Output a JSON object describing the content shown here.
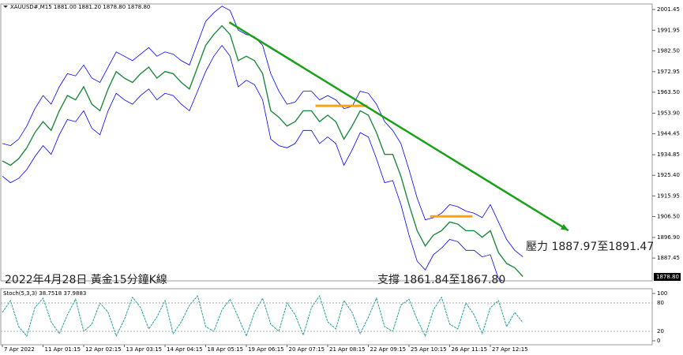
{
  "chart_data": {
    "type": "line",
    "title": "XAUUSD#,M15  1881.00 1881.20 1878.80 1878.80",
    "annotations": [
      "2022年4月28日 黃金15分鐘K線",
      "支撐 1861.84至1867.80",
      "壓力 1887.97至1891.47"
    ],
    "categories": [
      "7 Apr 2022",
      null,
      null,
      null,
      null,
      "11 Apr 01:15",
      null,
      null,
      null,
      null,
      "12 Apr 02:15",
      null,
      null,
      null,
      null,
      "13 Apr 03:15",
      null,
      null,
      null,
      null,
      "14 Apr 04:15",
      null,
      null,
      null,
      null,
      "18 Apr 05:15",
      null,
      null,
      null,
      null,
      "19 Apr 06:15",
      null,
      null,
      null,
      null,
      "20 Apr 07:15",
      null,
      null,
      null,
      null,
      "21 Apr 08:15",
      null,
      null,
      null,
      null,
      "22 Apr 09:15",
      null,
      null,
      null,
      null,
      "25 Apr 10:15",
      null,
      null,
      null,
      null,
      "26 Apr 11:15",
      null,
      null,
      null,
      null,
      "27 Apr 12:15",
      null,
      null,
      null,
      null
    ],
    "series": [
      {
        "color": "#0000ff",
        "values": [
          1940,
          1939,
          1942,
          1948,
          1956,
          1962,
          1958,
          1966,
          1972,
          1971,
          1976,
          1970,
          1968,
          1975,
          1982,
          1980,
          1978,
          1981,
          1984,
          1980,
          1982,
          1981,
          1978,
          1976,
          1986,
          1996,
          2000,
          2003,
          2001,
          1992,
          1990,
          1989,
          1985,
          1972,
          1964,
          1958,
          1959,
          1964,
          1964,
          1960,
          1962,
          1960,
          1956,
          1957,
          1964,
          1963,
          1958,
          1950,
          1946,
          1940,
          1928,
          1915,
          1905,
          1906,
          1908,
          1912,
          1911,
          1909,
          1908,
          1906,
          1912,
          1904,
          1896,
          1891,
          1888
        ]
      },
      {
        "color": "#1e8a3c",
        "values": [
          1932,
          1930,
          1933,
          1938,
          1945,
          1950,
          1946,
          1955,
          1962,
          1960,
          1966,
          1958,
          1955,
          1965,
          1973,
          1970,
          1968,
          1972,
          1975,
          1970,
          1973,
          1972,
          1968,
          1965,
          1975,
          1985,
          1990,
          1994,
          1990,
          1978,
          1980,
          1978,
          1972,
          1955,
          1952,
          1948,
          1950,
          1955,
          1955,
          1950,
          1953,
          1950,
          1942,
          1948,
          1955,
          1953,
          1945,
          1935,
          1935,
          1925,
          1912,
          1900,
          1893,
          1898,
          1900,
          1904,
          1903,
          1900,
          1900,
          1897,
          1900,
          1890,
          1885,
          1883,
          1879
        ]
      },
      {
        "color": "#0000ff",
        "values": [
          1925,
          1922,
          1924,
          1928,
          1934,
          1939,
          1935,
          1944,
          1951,
          1950,
          1955,
          1947,
          1944,
          1955,
          1963,
          1960,
          1958,
          1962,
          1965,
          1960,
          1963,
          1962,
          1958,
          1955,
          1964,
          1973,
          1980,
          1985,
          1980,
          1966,
          1969,
          1967,
          1960,
          1942,
          1939,
          1938,
          1940,
          1946,
          1946,
          1940,
          1943,
          1940,
          1930,
          1937,
          1945,
          1943,
          1933,
          1922,
          1923,
          1912,
          1898,
          1886,
          1882,
          1889,
          1892,
          1896,
          1895,
          1891,
          1891,
          1888,
          1889,
          1878,
          1876,
          1876,
          1872
        ]
      }
    ],
    "ylim": [
      1877,
      2004
    ],
    "yticks": [
      2001.45,
      1991.95,
      {
        "value": 1982.5,
        "label": "1982.50"
      },
      1972.95,
      {
        "value": 1963.5,
        "label": "1963.50"
      },
      {
        "value": 1953.9,
        "label": "1953.90"
      },
      1944.45,
      1934.85,
      {
        "value": 1925.4,
        "label": "1925.40"
      },
      1915.95,
      {
        "value": 1906.5,
        "label": "1906.50"
      },
      {
        "value": 1896.9,
        "label": "1896.90"
      },
      1887.45
    ],
    "current_price": {
      "value": 1878.8,
      "label": "1878.80"
    },
    "trendline": {
      "x": [
        27.9,
        69.6
      ],
      "y": [
        1995.6,
        1900.1
      ],
      "color": "#1aa11a"
    },
    "levels": [
      {
        "x": [
          38.5,
          44.9
        ],
        "value": 1957.3,
        "color": "#ffa500"
      },
      {
        "x": [
          52.6,
          57.8
        ],
        "value": 1906.6,
        "color": "#ffa500"
      }
    ],
    "stochastic": {
      "label": "Stoch(5,3,3) 38.7518 37.9883",
      "color": "#20a0a0",
      "values": [
        60,
        85,
        30,
        10,
        70,
        90,
        40,
        15,
        55,
        88,
        20,
        35,
        80,
        60,
        10,
        45,
        92,
        70,
        25,
        50,
        85,
        15,
        40,
        75,
        95,
        30,
        20,
        65,
        88,
        50,
        10,
        60,
        90,
        35,
        20,
        80,
        55,
        12,
        70,
        95,
        40,
        25,
        85,
        60,
        15,
        50,
        90,
        30,
        20,
        75,
        88,
        45,
        10,
        65,
        92,
        35,
        25,
        80,
        55,
        15,
        70,
        85,
        30,
        60,
        38.75
      ],
      "ylim": [
        0,
        100
      ],
      "yticks": [
        100,
        80,
        20,
        0
      ]
    }
  }
}
